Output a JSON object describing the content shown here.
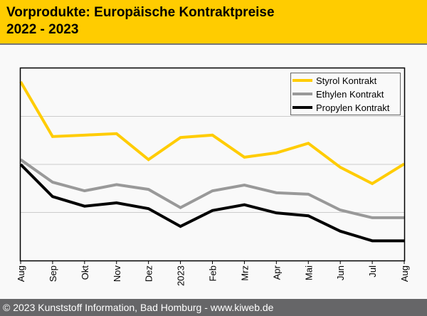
{
  "header": {
    "title_line1": "Vorprodukte: Europäische Kontraktpreise",
    "title_line2": "2022 - 2023"
  },
  "footer": {
    "text": "© 2023 Kunststoff Information, Bad Homburg - www.kiweb.de"
  },
  "chart_data": {
    "type": "line",
    "title": "Vorprodukte: Europäische Kontraktpreise 2022 - 2023",
    "xlabel": "",
    "ylabel": "",
    "categories": [
      "Aug",
      "Sep",
      "Okt",
      "Nov",
      "Dez",
      "2023",
      "Feb",
      "Mrz",
      "Apr",
      "Mai",
      "Jun",
      "Jul",
      "Aug"
    ],
    "ylim": [
      0,
      4
    ],
    "y_ticks_labeled": false,
    "gridlines_y": [
      1,
      2,
      3
    ],
    "grid": true,
    "legend_position": "top-right",
    "note": "No y-axis values shown; values are relative, estimated against the 3 horizontal gridlines (0 = x-axis, 4 = top of plot).",
    "series": [
      {
        "name": "Styrol Kontrakt",
        "color": "#ffcc00",
        "values": [
          3.72,
          2.58,
          2.61,
          2.64,
          2.1,
          2.56,
          2.61,
          2.15,
          2.24,
          2.44,
          1.94,
          1.6,
          2.01
        ]
      },
      {
        "name": "Ethylen Kontrakt",
        "color": "#999999",
        "values": [
          2.1,
          1.63,
          1.45,
          1.58,
          1.48,
          1.1,
          1.45,
          1.57,
          1.41,
          1.38,
          1.05,
          0.89,
          0.89
        ]
      },
      {
        "name": "Propylen Kontrakt",
        "color": "#000000",
        "values": [
          2.0,
          1.33,
          1.13,
          1.2,
          1.08,
          0.71,
          1.04,
          1.16,
          0.99,
          0.93,
          0.61,
          0.41,
          0.41
        ]
      }
    ]
  }
}
